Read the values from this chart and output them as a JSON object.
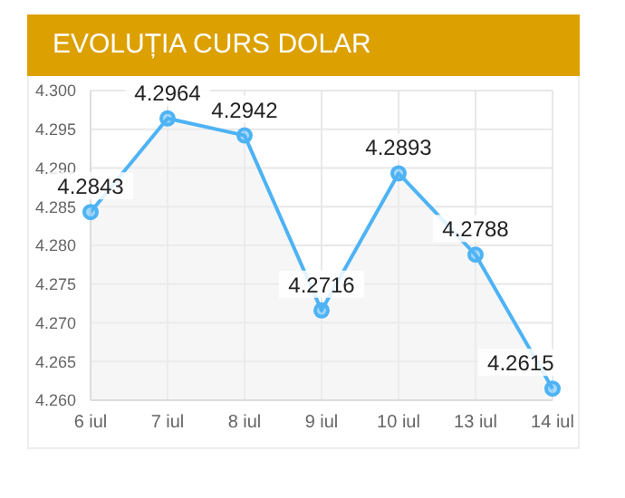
{
  "chart_data": {
    "type": "area",
    "title": "EVOLUȚIA CURS DOLAR",
    "categories": [
      "6 iul",
      "7 iul",
      "8 iul",
      "9 iul",
      "10 iul",
      "13 iul",
      "14 iul"
    ],
    "series": [
      {
        "color": "#4db3f5",
        "values": [
          4.2843,
          4.2964,
          4.2942,
          4.2716,
          4.2893,
          4.2788,
          4.2615
        ]
      }
    ],
    "ylim": [
      4.26,
      4.3
    ],
    "yticks": [
      {
        "value": 4.26,
        "label": "4.260"
      },
      {
        "value": 4.265,
        "label": "4.265"
      },
      {
        "value": 4.27,
        "label": "4.270"
      },
      {
        "value": 4.275,
        "label": "4.275"
      },
      {
        "value": 4.28,
        "label": "4.280"
      },
      {
        "value": 4.285,
        "label": "4.285"
      },
      {
        "value": 4.29,
        "label": "4.290"
      },
      {
        "value": 4.295,
        "label": "4.295"
      },
      {
        "value": 4.3,
        "label": "4.300"
      }
    ],
    "grid": true,
    "marker": "circle",
    "data_labels": true
  }
}
